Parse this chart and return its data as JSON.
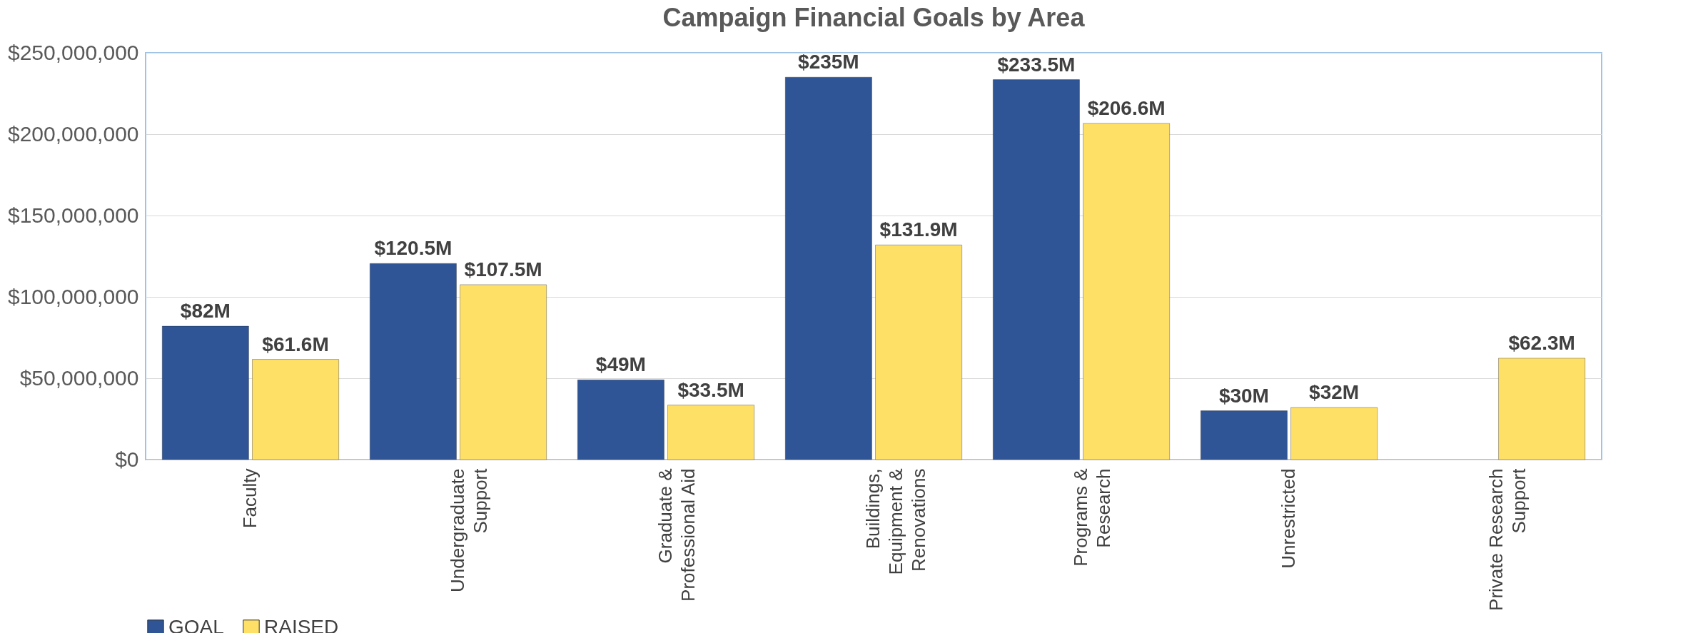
{
  "chart_data": {
    "type": "bar",
    "title": "Campaign Financial Goals by Area",
    "categories": [
      "Faculty",
      "Undergraduate Support",
      "Graduate & Professional Aid",
      "Buildings, Equipment & Renovations",
      "Programs & Research",
      "Unrestricted",
      "Private Research Support"
    ],
    "series": [
      {
        "name": "GOAL",
        "color": "#2f5597",
        "values": [
          82000000,
          120500000,
          49000000,
          235000000,
          233500000,
          30000000,
          null
        ],
        "value_labels": [
          "$82M",
          "$120.5M",
          "$49M",
          "$235M",
          "$233.5M",
          "$30M",
          null
        ]
      },
      {
        "name": "RAISED",
        "color": "#ffe066",
        "values": [
          61600000,
          107500000,
          33500000,
          131900000,
          206600000,
          32000000,
          62300000
        ],
        "value_labels": [
          "$61.6M",
          "$107.5M",
          "$33.5M",
          "$131.9M",
          "$206.6M",
          "$32M",
          "$62.3M"
        ]
      }
    ],
    "ylim": [
      0,
      250000000
    ],
    "yticks": [
      {
        "value": 0,
        "label": "$0"
      },
      {
        "value": 50000000,
        "label": "$50,000,000"
      },
      {
        "value": 100000000,
        "label": "$100,000,000"
      },
      {
        "value": 150000000,
        "label": "$150,000,000"
      },
      {
        "value": 200000000,
        "label": "$200,000,000"
      },
      {
        "value": 250000000,
        "label": "$250,000,000"
      }
    ],
    "grid": "y",
    "legend": "bottom"
  }
}
